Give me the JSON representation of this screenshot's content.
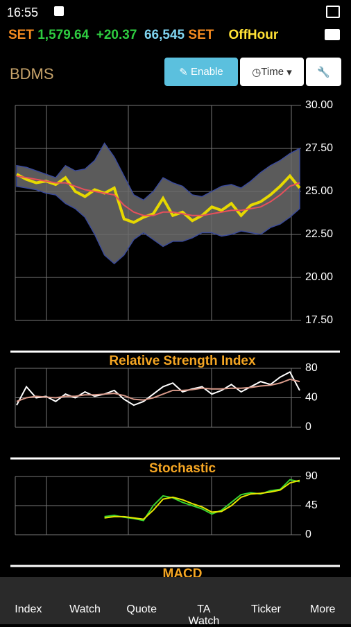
{
  "status_bar": {
    "time": "16:55"
  },
  "ticker": {
    "market": "SET",
    "index": "1,579.64",
    "change": "+20.37",
    "volume": "66,545",
    "unit": "SET",
    "state": "OffHour"
  },
  "header": {
    "symbol": "BDMS",
    "enable": "Enable",
    "time": "Time"
  },
  "chart_data": [
    {
      "type": "line",
      "ylim": [
        17.5,
        30
      ],
      "yticks": [
        {
          "value": 30,
          "label": "30.00"
        },
        {
          "value": 27.5,
          "label": "27.50"
        },
        {
          "value": 25,
          "label": "25.00"
        },
        {
          "value": 22.5,
          "label": "22.50"
        },
        {
          "value": 20,
          "label": "20.00"
        },
        {
          "value": 17.5,
          "label": "17.50"
        }
      ],
      "grid": true,
      "band": {
        "color": "#6b6b6b",
        "upper": [
          26.5,
          26.4,
          26.2,
          26,
          25.8,
          26.5,
          26.2,
          26.3,
          26.8,
          27.8,
          27,
          25.9,
          24.8,
          24.5,
          25,
          25.8,
          25.5,
          25.3,
          24.8,
          24.7,
          25,
          25.3,
          25.4,
          25.2,
          25.6,
          26.1,
          26.5,
          26.8,
          27.2,
          27.5
        ],
        "lower": [
          25.3,
          25.2,
          25.1,
          24.9,
          24.8,
          24.3,
          24,
          23.5,
          22.5,
          21.3,
          20.8,
          21.3,
          22.2,
          22.6,
          22.2,
          21.8,
          22.1,
          22.1,
          22.3,
          22.6,
          22.6,
          22.4,
          22.5,
          22.7,
          22.6,
          22.5,
          22.9,
          23.1,
          23.5,
          24
        ]
      },
      "series": [
        {
          "color": "#e6d800",
          "values": [
            26,
            25.7,
            25.5,
            25.6,
            25.4,
            25.8,
            25,
            24.7,
            25.1,
            24.9,
            25.2,
            23.4,
            23.2,
            23.5,
            23.7,
            24.6,
            23.6,
            23.8,
            23.3,
            23.6,
            24.1,
            23.9,
            24.3,
            23.6,
            24.2,
            24.4,
            24.8,
            25.3,
            25.9,
            25.2
          ]
        },
        {
          "color": "#e8505b",
          "values": [
            25.9,
            25.8,
            25.7,
            25.6,
            25.5,
            25.5,
            25.3,
            25.1,
            25,
            24.9,
            24.8,
            24.2,
            23.8,
            23.6,
            23.6,
            23.8,
            23.8,
            23.7,
            23.6,
            23.6,
            23.7,
            23.8,
            23.9,
            23.9,
            24,
            24.1,
            24.4,
            24.8,
            25.3,
            25.5
          ]
        }
      ]
    },
    {
      "type": "line",
      "title": "Relative Strength Index",
      "ylim": [
        0,
        80
      ],
      "yticks": [
        0,
        40,
        80
      ],
      "grid": true,
      "series": [
        {
          "color": "#ffffff",
          "values": [
            30,
            55,
            40,
            42,
            35,
            45,
            40,
            48,
            42,
            45,
            50,
            38,
            30,
            35,
            45,
            55,
            60,
            48,
            52,
            55,
            45,
            50,
            58,
            48,
            55,
            62,
            58,
            68,
            75,
            50
          ]
        },
        {
          "color": "#d89a8a",
          "values": [
            35,
            40,
            42,
            41,
            40,
            42,
            42,
            44,
            44,
            45,
            46,
            43,
            38,
            37,
            40,
            45,
            50,
            50,
            51,
            53,
            52,
            52,
            53,
            53,
            54,
            56,
            57,
            60,
            65,
            62
          ]
        }
      ]
    },
    {
      "type": "line",
      "title": "Stochastic",
      "ylim": [
        0,
        90
      ],
      "yticks": [
        0,
        45,
        90
      ],
      "grid": true,
      "series": [
        {
          "color": "#39d430",
          "values": [
            null,
            null,
            null,
            null,
            null,
            null,
            null,
            null,
            null,
            28,
            30,
            27,
            25,
            22,
            45,
            60,
            57,
            50,
            45,
            40,
            32,
            38,
            50,
            62,
            65,
            63,
            68,
            70,
            85,
            82
          ]
        },
        {
          "color": "#e6e600",
          "values": [
            null,
            null,
            null,
            null,
            null,
            null,
            null,
            null,
            null,
            26,
            28,
            28,
            26,
            24,
            38,
            55,
            58,
            54,
            48,
            43,
            35,
            36,
            45,
            58,
            63,
            64,
            66,
            69,
            80,
            84
          ]
        }
      ]
    },
    {
      "type": "line",
      "title": "MACD"
    }
  ],
  "nav": [
    "Index",
    "Watch",
    "Quote",
    "TA Watch",
    "Ticker",
    "More"
  ]
}
